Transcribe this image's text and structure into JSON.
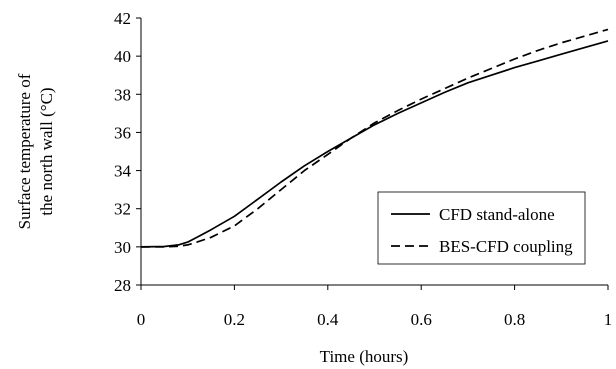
{
  "chart_data": {
    "type": "line",
    "title": "",
    "xlabel": "Time (hours)",
    "ylabel_lines": [
      "Surface temperature of",
      "the north wall (°C)"
    ],
    "xlim": [
      0,
      1
    ],
    "ylim": [
      28,
      42
    ],
    "xticks": [
      0,
      0.2,
      0.4,
      0.6,
      0.8,
      1
    ],
    "xtick_labels": [
      "0",
      "0.2",
      "0.4",
      "0.6",
      "0.8",
      "1"
    ],
    "yticks": [
      28,
      30,
      32,
      34,
      36,
      38,
      40,
      42
    ],
    "ytick_labels": [
      "28",
      "30",
      "32",
      "34",
      "36",
      "38",
      "40",
      "42"
    ],
    "grid": false,
    "legend_position": "bottom-right",
    "series": [
      {
        "name": "CFD stand-alone",
        "style": "solid",
        "color": "#000000",
        "x": [
          0,
          0.05,
          0.08,
          0.1,
          0.12,
          0.15,
          0.2,
          0.25,
          0.3,
          0.35,
          0.4,
          0.45,
          0.5,
          0.55,
          0.6,
          0.65,
          0.7,
          0.75,
          0.8,
          0.85,
          0.9,
          0.95,
          1.0
        ],
        "y": [
          30.0,
          30.02,
          30.1,
          30.25,
          30.5,
          30.9,
          31.6,
          32.5,
          33.4,
          34.25,
          35.0,
          35.7,
          36.4,
          37.0,
          37.55,
          38.1,
          38.6,
          39.0,
          39.4,
          39.75,
          40.1,
          40.45,
          40.8
        ]
      },
      {
        "name": "BES-CFD coupling",
        "style": "dashed",
        "color": "#000000",
        "x": [
          0,
          0.05,
          0.08,
          0.1,
          0.12,
          0.15,
          0.2,
          0.25,
          0.3,
          0.35,
          0.4,
          0.45,
          0.5,
          0.55,
          0.6,
          0.65,
          0.7,
          0.75,
          0.8,
          0.85,
          0.9,
          0.95,
          1.0
        ],
        "y": [
          30.0,
          30.0,
          30.03,
          30.1,
          30.25,
          30.5,
          31.1,
          32.0,
          33.0,
          34.0,
          34.85,
          35.7,
          36.5,
          37.15,
          37.75,
          38.3,
          38.85,
          39.35,
          39.85,
          40.3,
          40.7,
          41.05,
          41.4
        ]
      }
    ]
  }
}
